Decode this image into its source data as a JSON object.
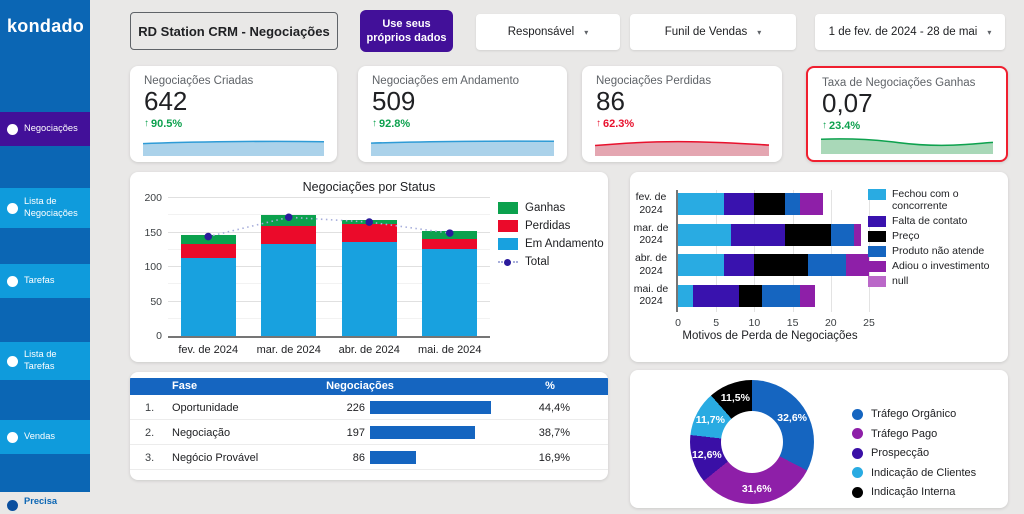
{
  "brand": {
    "logo_text": "kondado"
  },
  "sidebar": {
    "bg_color": "#0B66B4",
    "item_color": "#0F9BDC",
    "active_color": "#421099",
    "items": [
      {
        "label": "Negociações",
        "active": true
      },
      {
        "label": "Lista de Negociações",
        "active": false
      },
      {
        "label": "Tarefas",
        "active": false
      },
      {
        "label": "Lista de Tarefas",
        "active": false
      },
      {
        "label": "Vendas",
        "active": false
      }
    ],
    "footer_item": {
      "label": "Precisa"
    }
  },
  "topbar": {
    "title": "RD Station CRM - Negociações",
    "cta_label": "Use seus próprios dados",
    "filters": [
      {
        "label": "Responsável",
        "caret": "▾"
      },
      {
        "label": "Funil de Vendas",
        "caret": "▾"
      },
      {
        "label": "1 de fev. de 2024 - 28 de mai",
        "caret": "▾"
      }
    ]
  },
  "kpis": [
    {
      "label": "Negociações Criadas",
      "value": "642",
      "trend_icon": "↑",
      "delta": "90.5%",
      "delta_color": "#0DA14E",
      "spark_stroke": "#2E9BD6",
      "spark_fill": "#ABD2EA",
      "highlight": false
    },
    {
      "label": "Negociações em Andamento",
      "value": "509",
      "trend_icon": "↑",
      "delta": "92.8%",
      "delta_color": "#0DA14E",
      "spark_stroke": "#2E9BD6",
      "spark_fill": "#ABD2EA",
      "highlight": false
    },
    {
      "label": "Negociações Perdidas",
      "value": "86",
      "trend_icon": "↑",
      "delta": "62.3%",
      "delta_color": "#E8112D",
      "spark_stroke": "#E8112D",
      "spark_fill": "#E4A6B1",
      "highlight": false
    },
    {
      "label": "Taxa de Negociações Ganhas",
      "value": "0,07",
      "trend_icon": "↑",
      "delta": "23.4%",
      "delta_color": "#0DA14E",
      "spark_stroke": "#0DA14E",
      "spark_fill": "#A9D8B8",
      "highlight": true,
      "highlight_color": "#F01F2F"
    }
  ],
  "chart_data": [
    {
      "id": "status",
      "type": "bar",
      "stacked": true,
      "title": "Negociações por Status",
      "categories": [
        "fev. de 2024",
        "mar. de 2024",
        "abr. de 2024",
        "mai. de 2024"
      ],
      "series": [
        {
          "name": "Em Andamento",
          "color": "#18A1DF",
          "values": [
            113,
            134,
            136,
            126
          ]
        },
        {
          "name": "Perdidas",
          "color": "#EB0A2A",
          "values": [
            20,
            25,
            26,
            15
          ]
        },
        {
          "name": "Ganhas",
          "color": "#0BA14D",
          "values": [
            14,
            16,
            6,
            11
          ]
        }
      ],
      "line_series": {
        "name": "Total",
        "color": "#2B1B9C",
        "line_color": "#A7AEDB",
        "values": [
          147,
          175,
          168,
          152
        ]
      },
      "ylim": [
        0,
        200
      ],
      "ytick_step": 50,
      "minor_step": 25,
      "grid": true,
      "legend_position": "right"
    },
    {
      "id": "loss_reasons",
      "type": "bar-horizontal",
      "stacked": true,
      "title": "Motivos de Perda de Negociações",
      "title_position": "bottom",
      "categories": [
        "fev. de 2024",
        "mar. de 2024",
        "abr. de 2024",
        "mai. de 2024"
      ],
      "series": [
        {
          "name": "Fechou com o concorrente",
          "color": "#29ABE2",
          "values": [
            6,
            7,
            6,
            2
          ]
        },
        {
          "name": "Falta de contato",
          "color": "#3912AE",
          "values": [
            4,
            7,
            4,
            6
          ]
        },
        {
          "name": "Preço",
          "color": "#000000",
          "values": [
            4,
            6,
            7,
            3
          ]
        },
        {
          "name": "Produto não atende",
          "color": "#1565C0",
          "values": [
            2,
            3,
            5,
            5
          ]
        },
        {
          "name": "Adiou o investimento",
          "color": "#8E1FA8",
          "values": [
            3,
            1,
            3,
            2
          ]
        },
        {
          "name": "null",
          "color": "#BA68C8",
          "values": [
            0,
            0,
            0,
            0
          ]
        }
      ],
      "xlim": [
        0,
        25
      ],
      "xtick_step": 5,
      "grid": true,
      "legend_position": "right"
    },
    {
      "id": "phase_table",
      "type": "table",
      "columns": [
        "Fase",
        "Negociações",
        "%"
      ],
      "header_bg": "#1565C0",
      "bar_color": "#1565C0",
      "rows": [
        {
          "index": "1.",
          "fase": "Oportunidade",
          "value": 226,
          "pct": "44,4%"
        },
        {
          "index": "2.",
          "fase": "Negociação",
          "value": 197,
          "pct": "38,7%"
        },
        {
          "index": "3.",
          "fase": "Negócio Provável",
          "value": 86,
          "pct": "16,9%"
        }
      ]
    },
    {
      "id": "sources",
      "type": "pie",
      "donut": true,
      "labels": [
        "Tráfego Orgânico",
        "Tráfego Pago",
        "Prospecção",
        "Indicação de Clientes",
        "Indicação Interna"
      ],
      "values": [
        32.6,
        31.6,
        12.6,
        11.7,
        11.5
      ],
      "value_labels": [
        "32,6%",
        "31,6%",
        "12,6%",
        "11,7%",
        "11,5%"
      ],
      "colors": [
        "#1565C0",
        "#8E1FA8",
        "#3A0FA6",
        "#29ABE2",
        "#000000"
      ],
      "legend_position": "right"
    }
  ]
}
